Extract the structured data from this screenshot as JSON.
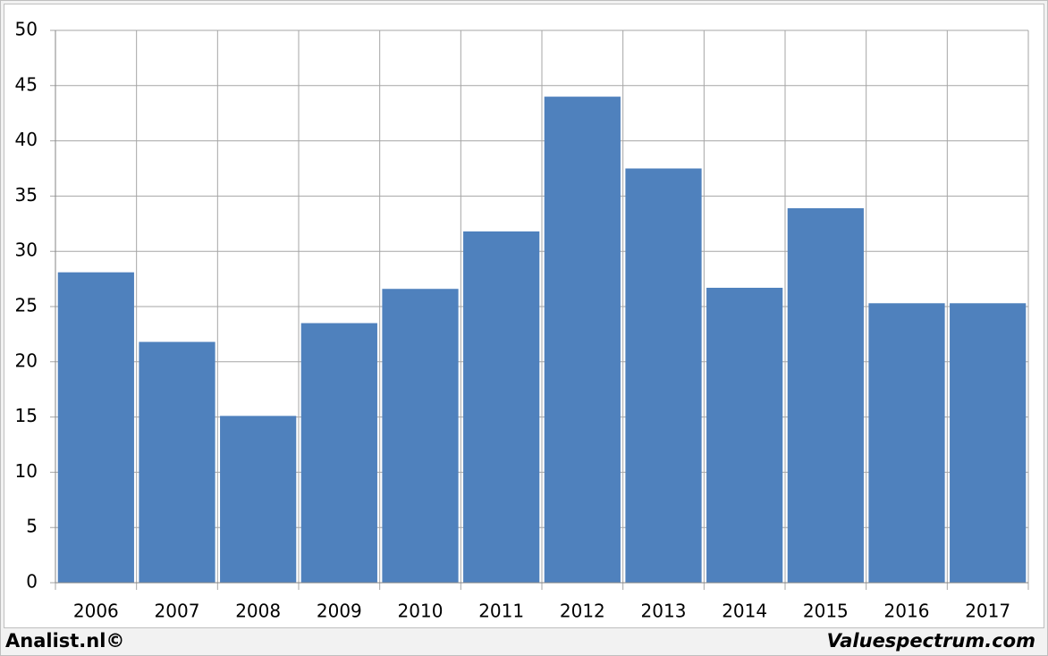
{
  "chart_data": {
    "type": "bar",
    "categories": [
      "2006",
      "2007",
      "2008",
      "2009",
      "2010",
      "2011",
      "2012",
      "2013",
      "2014",
      "2015",
      "2016",
      "2017"
    ],
    "values": [
      28.1,
      21.8,
      15.1,
      23.5,
      26.6,
      31.8,
      44.0,
      37.5,
      26.7,
      33.9,
      25.3,
      25.3
    ],
    "color": "#4f81bd",
    "ylim": [
      0,
      50
    ],
    "yticks": [
      0,
      5,
      10,
      15,
      20,
      25,
      30,
      35,
      40,
      45,
      50
    ],
    "grid": true,
    "annotations": [
      "Analist.nl©",
      "Valuespectrum.com"
    ]
  }
}
